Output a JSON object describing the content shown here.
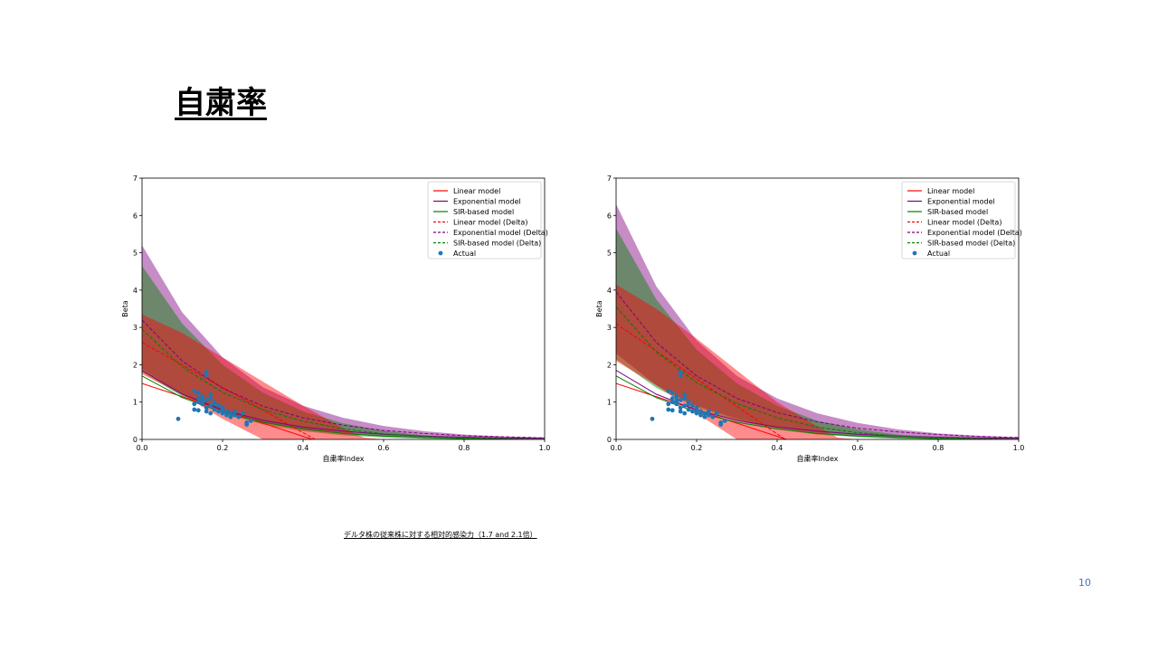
{
  "slide": {
    "title": "自粛率",
    "caption": "デルタ株の従来株に対する相対的感染力（1.7 and 2.1倍）",
    "page_number": "10"
  },
  "chart_data": [
    {
      "type": "line",
      "xlabel": "自粛率Index",
      "ylabel": "Beta",
      "xlim": [
        0.0,
        1.0
      ],
      "ylim": [
        0,
        7
      ],
      "xticks": [
        "0.0",
        "0.2",
        "0.4",
        "0.6",
        "0.8",
        "1.0"
      ],
      "yticks": [
        "0",
        "1",
        "2",
        "3",
        "4",
        "5",
        "6",
        "7"
      ],
      "legend_position": "top-right",
      "legend": [
        "Linear model",
        "Exponential model",
        "SIR-based model",
        "Linear model (Delta)",
        "Exponential model (Delta)",
        "SIR-based model (Delta)",
        "Actual"
      ],
      "colors": {
        "linear": "#ff0000",
        "exponential": "#800080",
        "sir": "#008000",
        "actual": "#1f77b4"
      },
      "series": [
        {
          "name": "Linear model",
          "style": "solid",
          "color": "#ff0000",
          "x": [
            0.0,
            0.423
          ],
          "y": [
            1.5,
            0.0
          ]
        },
        {
          "name": "Exponential model",
          "style": "solid",
          "color": "#800080",
          "x": [
            0,
            0.1,
            0.2,
            0.3,
            0.4,
            0.5,
            0.6,
            0.7,
            0.8,
            0.9,
            1.0
          ],
          "y": [
            1.85,
            1.21,
            0.79,
            0.51,
            0.33,
            0.22,
            0.14,
            0.09,
            0.06,
            0.04,
            0.03
          ]
        },
        {
          "name": "SIR-based model",
          "style": "solid",
          "color": "#008000",
          "x": [
            0,
            0.1,
            0.2,
            0.3,
            0.4,
            0.5,
            0.6,
            0.7,
            0.8,
            0.9,
            1.0
          ],
          "y": [
            1.7,
            1.12,
            0.73,
            0.46,
            0.28,
            0.16,
            0.09,
            0.05,
            0.02,
            0.01,
            0.0
          ]
        },
        {
          "name": "Linear model (Delta)",
          "style": "dashed",
          "color": "#ff0000",
          "x": [
            0.0,
            0.43
          ],
          "y": [
            2.6,
            0.0
          ]
        },
        {
          "name": "Exponential model (Delta)",
          "style": "dashed",
          "color": "#800080",
          "x": [
            0,
            0.1,
            0.2,
            0.3,
            0.4,
            0.5,
            0.6,
            0.7,
            0.8,
            0.9,
            1.0
          ],
          "y": [
            3.2,
            2.1,
            1.37,
            0.89,
            0.58,
            0.38,
            0.24,
            0.16,
            0.1,
            0.07,
            0.04
          ]
        },
        {
          "name": "SIR-based model (Delta)",
          "style": "dashed",
          "color": "#008000",
          "x": [
            0,
            0.1,
            0.2,
            0.3,
            0.4,
            0.5,
            0.6,
            0.7,
            0.8,
            0.9,
            1.0
          ],
          "y": [
            2.95,
            1.94,
            1.26,
            0.8,
            0.49,
            0.28,
            0.15,
            0.08,
            0.04,
            0.02,
            0.0
          ]
        }
      ],
      "bands": [
        {
          "model": "exponential",
          "color": "#800080",
          "x": [
            0,
            0.1,
            0.2,
            0.3,
            0.4,
            0.5,
            0.6,
            0.7,
            0.8,
            0.9,
            1.0
          ],
          "lower": [
            1.9,
            1.2,
            0.75,
            0.45,
            0.26,
            0.15,
            0.08,
            0.04,
            0.02,
            0.01,
            0.0
          ],
          "upper": [
            5.2,
            3.4,
            2.2,
            1.4,
            0.9,
            0.58,
            0.36,
            0.22,
            0.13,
            0.08,
            0.05
          ]
        },
        {
          "model": "sir",
          "color": "#008000",
          "x": [
            0,
            0.1,
            0.2,
            0.3,
            0.4,
            0.5,
            0.6,
            0.7,
            0.8,
            0.9,
            1.0
          ],
          "lower": [
            1.8,
            1.15,
            0.7,
            0.4,
            0.22,
            0.11,
            0.05,
            0.02,
            0.01,
            0.0,
            0.0
          ],
          "upper": [
            4.65,
            3.1,
            2.0,
            1.25,
            0.75,
            0.43,
            0.23,
            0.11,
            0.05,
            0.02,
            0.0
          ]
        },
        {
          "model": "linear",
          "color": "#ff0000",
          "x": [
            0,
            0.1,
            0.2,
            0.3,
            0.4,
            0.5,
            0.55,
            0.6
          ],
          "lower": [
            1.75,
            1.2,
            0.55,
            0.0,
            0.0,
            0.0,
            0.0,
            0.0
          ],
          "upper": [
            3.35,
            2.85,
            2.2,
            1.55,
            0.9,
            0.3,
            0.05,
            0.0
          ]
        }
      ],
      "actual": {
        "name": "Actual",
        "color": "#1f77b4",
        "x": [
          0.09,
          0.13,
          0.13,
          0.14,
          0.14,
          0.15,
          0.15,
          0.16,
          0.16,
          0.16,
          0.17,
          0.17,
          0.17,
          0.18,
          0.18,
          0.19,
          0.2,
          0.2,
          0.21,
          0.21,
          0.22,
          0.22,
          0.23,
          0.24,
          0.25,
          0.26,
          0.27,
          0.13,
          0.14,
          0.15,
          0.16,
          0.16,
          0.17,
          0.14,
          0.15,
          0.18,
          0.19,
          0.2,
          0.23,
          0.26
        ],
        "y": [
          0.55,
          0.8,
          0.95,
          1.0,
          0.78,
          0.95,
          1.05,
          0.75,
          0.85,
          1.05,
          0.7,
          0.9,
          1.1,
          0.8,
          0.95,
          0.75,
          0.7,
          0.85,
          0.65,
          0.75,
          0.6,
          0.7,
          0.65,
          0.6,
          0.7,
          0.4,
          0.5,
          1.3,
          1.25,
          1.15,
          1.7,
          1.8,
          1.2,
          1.1,
          1.0,
          1.0,
          0.9,
          0.8,
          0.75,
          0.45
        ]
      }
    },
    {
      "type": "line",
      "xlabel": "自粛率Index",
      "ylabel": "Beta",
      "xlim": [
        0.0,
        1.0
      ],
      "ylim": [
        0,
        7
      ],
      "xticks": [
        "0.0",
        "0.2",
        "0.4",
        "0.6",
        "0.8",
        "1.0"
      ],
      "yticks": [
        "0",
        "1",
        "2",
        "3",
        "4",
        "5",
        "6",
        "7"
      ],
      "legend_position": "top-right",
      "legend": [
        "Linear model",
        "Exponential model",
        "SIR-based model",
        "Linear model (Delta)",
        "Exponential model (Delta)",
        "SIR-based model (Delta)",
        "Actual"
      ],
      "colors": {
        "linear": "#ff0000",
        "exponential": "#800080",
        "sir": "#008000",
        "actual": "#1f77b4"
      },
      "series": [
        {
          "name": "Linear model",
          "style": "solid",
          "color": "#ff0000",
          "x": [
            0.0,
            0.423
          ],
          "y": [
            1.5,
            0.0
          ]
        },
        {
          "name": "Exponential model",
          "style": "solid",
          "color": "#800080",
          "x": [
            0,
            0.1,
            0.2,
            0.3,
            0.4,
            0.5,
            0.6,
            0.7,
            0.8,
            0.9,
            1.0
          ],
          "y": [
            1.85,
            1.21,
            0.79,
            0.51,
            0.33,
            0.22,
            0.14,
            0.09,
            0.06,
            0.04,
            0.03
          ]
        },
        {
          "name": "SIR-based model",
          "style": "solid",
          "color": "#008000",
          "x": [
            0,
            0.1,
            0.2,
            0.3,
            0.4,
            0.5,
            0.6,
            0.7,
            0.8,
            0.9,
            1.0
          ],
          "y": [
            1.7,
            1.12,
            0.73,
            0.46,
            0.28,
            0.16,
            0.09,
            0.05,
            0.02,
            0.01,
            0.0
          ]
        },
        {
          "name": "Linear model (Delta)",
          "style": "dashed",
          "color": "#ff0000",
          "x": [
            0.0,
            0.42
          ],
          "y": [
            3.1,
            0.0
          ]
        },
        {
          "name": "Exponential model (Delta)",
          "style": "dashed",
          "color": "#800080",
          "x": [
            0,
            0.1,
            0.2,
            0.3,
            0.4,
            0.5,
            0.6,
            0.7,
            0.8,
            0.9,
            1.0
          ],
          "y": [
            3.95,
            2.6,
            1.7,
            1.1,
            0.72,
            0.47,
            0.3,
            0.2,
            0.13,
            0.08,
            0.05
          ]
        },
        {
          "name": "SIR-based model (Delta)",
          "style": "dashed",
          "color": "#008000",
          "x": [
            0,
            0.1,
            0.2,
            0.3,
            0.4,
            0.5,
            0.6,
            0.7,
            0.8,
            0.9,
            1.0
          ],
          "y": [
            3.55,
            2.34,
            1.52,
            0.96,
            0.58,
            0.33,
            0.18,
            0.09,
            0.04,
            0.02,
            0.0
          ]
        }
      ],
      "bands": [
        {
          "model": "exponential",
          "color": "#800080",
          "x": [
            0,
            0.1,
            0.2,
            0.3,
            0.4,
            0.5,
            0.6,
            0.7,
            0.8,
            0.9,
            1.0
          ],
          "lower": [
            2.3,
            1.45,
            0.9,
            0.55,
            0.32,
            0.18,
            0.1,
            0.05,
            0.03,
            0.01,
            0.0
          ],
          "upper": [
            6.3,
            4.1,
            2.65,
            1.7,
            1.1,
            0.7,
            0.44,
            0.27,
            0.16,
            0.1,
            0.06
          ]
        },
        {
          "model": "sir",
          "color": "#008000",
          "x": [
            0,
            0.1,
            0.2,
            0.3,
            0.4,
            0.5,
            0.6,
            0.7,
            0.8,
            0.9,
            1.0
          ],
          "lower": [
            2.15,
            1.38,
            0.85,
            0.5,
            0.27,
            0.13,
            0.06,
            0.02,
            0.01,
            0.0,
            0.0
          ],
          "upper": [
            5.65,
            3.75,
            2.4,
            1.5,
            0.9,
            0.5,
            0.27,
            0.13,
            0.06,
            0.02,
            0.0
          ]
        },
        {
          "model": "linear",
          "color": "#ff0000",
          "x": [
            0,
            0.1,
            0.2,
            0.3,
            0.4,
            0.5,
            0.55,
            0.6
          ],
          "lower": [
            2.1,
            1.45,
            0.7,
            0.0,
            0.0,
            0.0,
            0.0,
            0.0
          ],
          "upper": [
            4.15,
            3.5,
            2.7,
            1.85,
            1.0,
            0.35,
            0.05,
            0.0
          ]
        }
      ],
      "actual": {
        "name": "Actual",
        "color": "#1f77b4",
        "x": [
          0.09,
          0.13,
          0.13,
          0.14,
          0.14,
          0.15,
          0.15,
          0.16,
          0.16,
          0.16,
          0.17,
          0.17,
          0.17,
          0.18,
          0.18,
          0.19,
          0.2,
          0.2,
          0.21,
          0.21,
          0.22,
          0.22,
          0.23,
          0.24,
          0.25,
          0.26,
          0.27,
          0.13,
          0.14,
          0.15,
          0.16,
          0.16,
          0.17,
          0.14,
          0.15,
          0.18,
          0.19,
          0.2,
          0.23,
          0.26
        ],
        "y": [
          0.55,
          0.8,
          0.95,
          1.0,
          0.78,
          0.95,
          1.05,
          0.75,
          0.85,
          1.05,
          0.7,
          0.9,
          1.1,
          0.8,
          0.95,
          0.75,
          0.7,
          0.85,
          0.65,
          0.75,
          0.6,
          0.7,
          0.65,
          0.6,
          0.7,
          0.4,
          0.5,
          1.3,
          1.25,
          1.15,
          1.7,
          1.8,
          1.2,
          1.1,
          1.0,
          1.0,
          0.9,
          0.8,
          0.75,
          0.45
        ]
      }
    }
  ]
}
